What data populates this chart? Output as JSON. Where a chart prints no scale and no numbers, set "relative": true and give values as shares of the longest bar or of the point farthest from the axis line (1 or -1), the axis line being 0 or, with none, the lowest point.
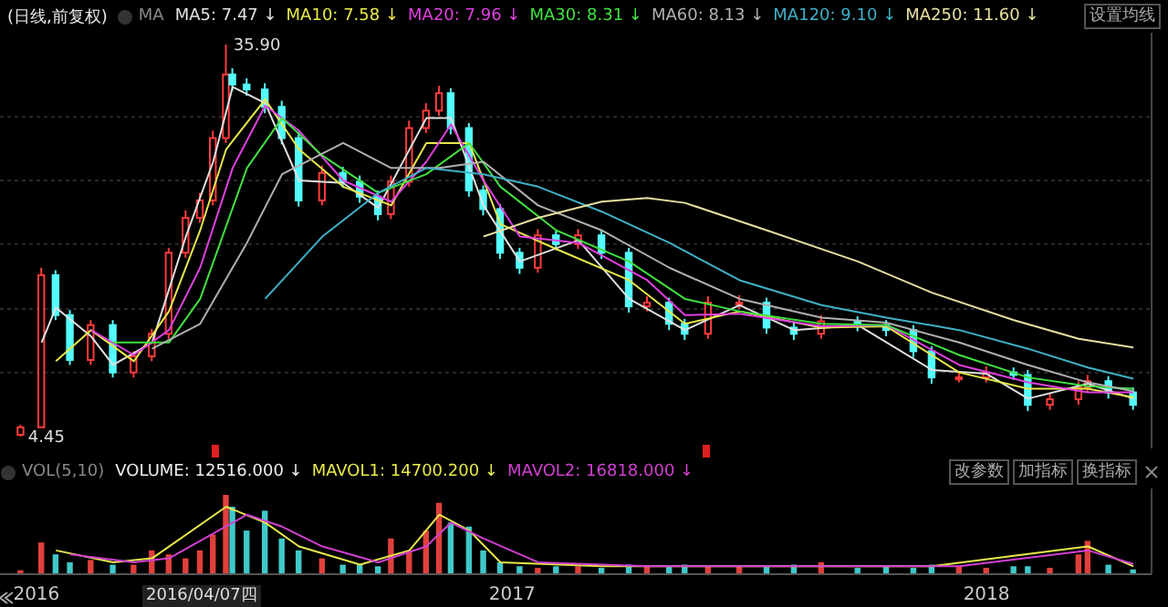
{
  "chart_data": [
    {
      "type": "candlestick",
      "title": "(日线,前复权)",
      "legend_title": "MA",
      "legend": "top",
      "grid": "y",
      "tick_labels": false,
      "x": [
        "2015-12-20",
        "2016-01-05",
        "2016-01-16",
        "2016-01-27",
        "2016-02-12",
        "2016-02-29",
        "2016-03-16",
        "2016-03-30",
        "2016-04-12",
        "2016-04-25",
        "2016-05-06",
        "2016-05-16",
        "2016-05-26",
        "2016-05-31",
        "2016-06-11",
        "2016-06-25",
        "2016-07-08",
        "2016-07-21",
        "2016-08-08",
        "2016-08-24",
        "2016-09-06",
        "2016-09-20",
        "2016-09-30",
        "2016-10-14",
        "2016-10-27",
        "2016-11-06",
        "2016-11-15",
        "2016-11-29",
        "2016-12-10",
        "2016-12-23",
        "2017-01-07",
        "2017-01-21",
        "2017-02-04",
        "2017-02-21",
        "2017-03-11",
        "2017-04-01",
        "2017-04-15",
        "2017-05-02",
        "2017-05-14",
        "2017-06-01",
        "2017-06-25",
        "2017-07-16",
        "2017-08-06",
        "2017-08-27",
        "2017-09-24",
        "2017-10-16",
        "2017-11-06",
        "2017-11-20",
        "2017-12-11",
        "2018-01-01",
        "2018-01-22",
        "2018-02-02",
        "2018-02-19",
        "2018-03-13",
        "2018-03-20",
        "2018-04-05",
        "2018-04-24"
      ],
      "ohlc": [
        [
          4.6,
          5.4,
          4.45,
          5.2
        ],
        [
          5.2,
          18.0,
          5.2,
          17.4
        ],
        [
          17.4,
          17.8,
          13.8,
          14.2
        ],
        [
          14.2,
          14.6,
          10.2,
          10.6
        ],
        [
          10.6,
          13.8,
          10.2,
          13.4
        ],
        [
          13.4,
          13.8,
          9.2,
          9.6
        ],
        [
          9.6,
          11.3,
          9.2,
          10.9
        ],
        [
          10.9,
          13.1,
          10.5,
          12.7
        ],
        [
          12.7,
          19.6,
          12.3,
          19.2
        ],
        [
          19.2,
          22.6,
          18.8,
          22.0
        ],
        [
          22.0,
          24.0,
          21.6,
          23.4
        ],
        [
          23.4,
          29.0,
          23.0,
          28.4
        ],
        [
          28.4,
          35.9,
          28.0,
          33.5
        ],
        [
          33.5,
          34.0,
          32.2,
          32.7
        ],
        [
          32.7,
          33.2,
          31.8,
          32.3
        ],
        [
          32.3,
          32.8,
          30.4,
          30.9
        ],
        [
          30.9,
          31.4,
          27.9,
          28.4
        ],
        [
          28.4,
          28.9,
          22.9,
          23.4
        ],
        [
          23.4,
          26.2,
          23.0,
          25.6
        ],
        [
          25.6,
          26.1,
          24.4,
          24.9
        ],
        [
          24.9,
          25.4,
          23.2,
          23.7
        ],
        [
          23.7,
          24.2,
          21.8,
          22.3
        ],
        [
          22.3,
          25.4,
          21.9,
          24.9
        ],
        [
          24.9,
          29.8,
          24.5,
          29.2
        ],
        [
          29.2,
          31.2,
          28.8,
          30.6
        ],
        [
          30.6,
          32.6,
          30.2,
          32.0
        ],
        [
          32.0,
          32.4,
          28.7,
          29.2
        ],
        [
          29.2,
          29.6,
          23.7,
          24.2
        ],
        [
          24.2,
          24.6,
          22.2,
          22.7
        ],
        [
          22.7,
          23.1,
          18.7,
          19.2
        ],
        [
          19.2,
          19.6,
          17.5,
          18.0
        ],
        [
          18.0,
          21.1,
          17.6,
          20.6
        ],
        [
          20.6,
          21.0,
          19.4,
          19.9
        ],
        [
          19.9,
          21.1,
          19.5,
          20.6
        ],
        [
          20.6,
          21.0,
          18.7,
          19.2
        ],
        [
          19.2,
          19.6,
          14.4,
          14.9
        ],
        [
          14.9,
          15.7,
          14.5,
          15.2
        ],
        [
          15.2,
          15.6,
          13.0,
          13.5
        ],
        [
          13.5,
          13.9,
          12.2,
          12.7
        ],
        [
          12.7,
          15.7,
          12.3,
          15.2
        ],
        [
          15.2,
          15.8,
          14.7,
          15.2
        ],
        [
          15.2,
          15.6,
          12.7,
          13.2
        ],
        [
          13.2,
          13.6,
          12.2,
          12.7
        ],
        [
          12.7,
          14.2,
          12.3,
          13.7
        ],
        [
          13.7,
          14.1,
          12.9,
          13.4
        ],
        [
          13.4,
          13.8,
          12.5,
          13.0
        ],
        [
          13.0,
          13.4,
          10.8,
          11.3
        ],
        [
          11.3,
          11.7,
          8.7,
          9.2
        ],
        [
          9.2,
          9.7,
          8.8,
          9.2
        ],
        [
          9.2,
          10.1,
          8.8,
          9.6
        ],
        [
          9.6,
          10.0,
          9.0,
          9.4
        ],
        [
          9.4,
          9.8,
          6.5,
          7.0
        ],
        [
          7.0,
          7.9,
          6.6,
          7.45
        ],
        [
          7.45,
          8.9,
          7.0,
          8.4
        ],
        [
          8.4,
          9.4,
          8.0,
          8.9
        ],
        [
          8.9,
          9.3,
          7.5,
          8.0
        ],
        [
          8.0,
          8.4,
          6.6,
          7.0
        ]
      ],
      "series": [
        {
          "name": "MA5: 7.47 ↓",
          "type": "line",
          "color": "#e0e0e0",
          "x": [
            "2016-01-05",
            "2016-01-16",
            "2016-02-12",
            "2016-02-29",
            "2016-03-30",
            "2016-04-25",
            "2016-05-16",
            "2016-05-31",
            "2016-06-25",
            "2016-07-21",
            "2016-08-24",
            "2016-09-20",
            "2016-10-27",
            "2016-11-15",
            "2016-12-10",
            "2017-01-07",
            "2017-02-21",
            "2017-04-01",
            "2017-05-14",
            "2017-06-25",
            "2017-08-06",
            "2017-09-24",
            "2017-11-20",
            "2018-01-01",
            "2018-02-02",
            "2018-03-20",
            "2018-04-24"
          ],
          "values": [
            12,
            14.8,
            12.5,
            10.2,
            12,
            20.5,
            26.5,
            32.5,
            31.2,
            25,
            24.8,
            22.8,
            30,
            30,
            23,
            18.5,
            20.2,
            15.5,
            13,
            15,
            13,
            13.4,
            9.8,
            9.5,
            7.5,
            8.7,
            7.5
          ]
        },
        {
          "name": "MA10: 7.58 ↓",
          "type": "line",
          "color": "#e8e84a",
          "x": [
            "2016-01-16",
            "2016-02-12",
            "2016-03-16",
            "2016-04-12",
            "2016-05-06",
            "2016-05-26",
            "2016-06-25",
            "2016-07-21",
            "2016-08-24",
            "2016-09-30",
            "2016-10-27",
            "2016-11-29",
            "2016-12-23",
            "2017-02-04",
            "2017-04-01",
            "2017-05-14",
            "2017-06-25",
            "2017-08-27",
            "2017-10-16",
            "2017-12-11",
            "2018-02-02",
            "2018-03-20",
            "2018-04-24"
          ],
          "values": [
            10.5,
            13,
            10.5,
            14.5,
            21,
            27.5,
            31.5,
            27.5,
            24.5,
            23,
            28,
            28,
            21.5,
            19.5,
            17,
            13.5,
            14.5,
            13.2,
            13.3,
            9.6,
            8.3,
            8.3,
            7.6
          ]
        },
        {
          "name": "MA20: 7.96 ↓",
          "type": "line",
          "color": "#e040e0",
          "x": [
            "2016-02-12",
            "2016-03-16",
            "2016-04-12",
            "2016-05-06",
            "2016-05-31",
            "2016-06-25",
            "2016-07-21",
            "2016-08-24",
            "2016-09-30",
            "2016-10-27",
            "2016-11-15",
            "2016-12-10",
            "2017-01-07",
            "2017-02-21",
            "2017-04-15",
            "2017-05-14",
            "2017-06-25",
            "2017-08-27",
            "2017-10-16",
            "2017-12-11",
            "2018-02-02",
            "2018-03-20",
            "2018-04-24"
          ],
          "values": [
            13,
            11,
            13,
            18,
            26,
            31,
            29,
            25,
            23.3,
            26.5,
            29.5,
            25,
            20.5,
            20,
            17,
            14.2,
            14.3,
            13.3,
            13.4,
            10.2,
            8.8,
            8.0,
            8.0
          ]
        },
        {
          "name": "MA30: 8.31 ↓",
          "type": "line",
          "color": "#40e040",
          "x": [
            "2016-02-29",
            "2016-04-12",
            "2016-05-06",
            "2016-06-11",
            "2016-07-08",
            "2016-08-08",
            "2016-09-20",
            "2016-10-27",
            "2016-11-29",
            "2016-12-23",
            "2017-02-04",
            "2017-04-01",
            "2017-05-14",
            "2017-06-25",
            "2017-08-27",
            "2017-10-16",
            "2017-12-11",
            "2018-02-02",
            "2018-03-20",
            "2018-04-24"
          ],
          "values": [
            12,
            12,
            15.5,
            26,
            30,
            27,
            24,
            25.5,
            28,
            24.5,
            21,
            18.5,
            15.5,
            14.5,
            13.5,
            13.4,
            11,
            9.2,
            8.5,
            8.3
          ]
        },
        {
          "name": "MA60: 8.13 ↓",
          "type": "line",
          "color": "#b0b0b0",
          "x": [
            "2016-03-30",
            "2016-05-06",
            "2016-06-11",
            "2016-07-08",
            "2016-08-24",
            "2016-09-30",
            "2016-11-06",
            "2016-12-10",
            "2017-01-21",
            "2017-03-11",
            "2017-05-02",
            "2017-06-25",
            "2017-08-27",
            "2017-10-16",
            "2017-12-11",
            "2018-02-02",
            "2018-03-20",
            "2018-04-24"
          ],
          "values": [
            11.5,
            13.5,
            20,
            25.5,
            28,
            26,
            26,
            26.5,
            23,
            21,
            18,
            15.5,
            14,
            13.6,
            12,
            10.2,
            8.8,
            8.1
          ]
        },
        {
          "name": "MA120: 9.10 ↓",
          "type": "line",
          "color": "#40b0c8",
          "x": [
            "2016-06-25",
            "2016-08-08",
            "2016-09-20",
            "2016-10-27",
            "2016-12-10",
            "2017-01-21",
            "2017-03-11",
            "2017-05-02",
            "2017-06-25",
            "2017-08-27",
            "2017-10-16",
            "2017-12-11",
            "2018-02-02",
            "2018-03-20",
            "2018-04-24"
          ],
          "values": [
            15.5,
            20.5,
            24,
            26,
            25.5,
            24.5,
            22.5,
            20,
            17,
            15,
            14,
            13,
            11.5,
            10,
            9.1
          ]
        },
        {
          "name": "MA250: 11.60 ↓",
          "type": "line",
          "color": "#e8e0a0",
          "x": [
            "2016-12-10",
            "2017-01-21",
            "2017-03-11",
            "2017-04-15",
            "2017-05-14",
            "2017-07-16",
            "2017-09-24",
            "2017-11-20",
            "2018-01-22",
            "2018-03-13",
            "2018-04-24"
          ],
          "values": [
            20.5,
            22,
            23.3,
            23.6,
            23.2,
            21,
            18.5,
            16,
            13.8,
            12.3,
            11.6
          ]
        }
      ],
      "xlim": [
        "2015-12-04",
        "2018-05-08"
      ],
      "yticks": [
        {
          "value": 9.6,
          "label": null
        },
        {
          "value": 14.7,
          "label": null
        },
        {
          "value": 19.9,
          "label": null
        },
        {
          "value": 25.0,
          "label": null
        },
        {
          "value": 30.1,
          "label": null
        }
      ],
      "annotations": [
        {
          "text": "35.90",
          "x": "2016-05-26",
          "y": 35.9
        },
        {
          "text": "4.45",
          "x": "2015-12-20",
          "y": 4.45
        },
        "设置均线"
      ]
    },
    {
      "type": "bar",
      "relative": true,
      "legend_title": "VOL(5,10)",
      "legend": "top left",
      "tick_labels": "x",
      "x": [
        "2015-12-20",
        "2016-01-05",
        "2016-01-16",
        "2016-01-27",
        "2016-02-12",
        "2016-02-29",
        "2016-03-16",
        "2016-03-30",
        "2016-04-12",
        "2016-04-25",
        "2016-05-06",
        "2016-05-16",
        "2016-05-26",
        "2016-05-31",
        "2016-06-11",
        "2016-06-25",
        "2016-07-08",
        "2016-07-21",
        "2016-08-08",
        "2016-08-24",
        "2016-09-06",
        "2016-09-20",
        "2016-09-30",
        "2016-10-14",
        "2016-10-27",
        "2016-11-06",
        "2016-11-15",
        "2016-11-29",
        "2016-12-10",
        "2016-12-23",
        "2017-01-07",
        "2017-01-21",
        "2017-02-04",
        "2017-02-21",
        "2017-03-11",
        "2017-04-01",
        "2017-04-15",
        "2017-05-02",
        "2017-05-14",
        "2017-06-01",
        "2017-06-25",
        "2017-07-16",
        "2017-08-06",
        "2017-08-27",
        "2017-09-24",
        "2017-10-16",
        "2017-11-06",
        "2017-11-20",
        "2017-12-11",
        "2018-01-01",
        "2018-01-22",
        "2018-02-02",
        "2018-02-19",
        "2018-03-13",
        "2018-03-20",
        "2018-04-05",
        "2018-04-24"
      ],
      "series": [
        {
          "name": "VOLUME: 12516.000 ↓",
          "values": [
            0.05,
            0.4,
            0.25,
            0.15,
            0.18,
            0.12,
            0.12,
            0.3,
            0.25,
            0.2,
            0.3,
            0.5,
            1,
            0.85,
            0.55,
            0.8,
            0.45,
            0.3,
            0.2,
            0.12,
            0.12,
            0.1,
            0.45,
            0.3,
            0.55,
            0.9,
            0.65,
            0.6,
            0.3,
            0.15,
            0.1,
            0.08,
            0.1,
            0.1,
            0.08,
            0.12,
            0.1,
            0.1,
            0.12,
            0.1,
            0.1,
            0.1,
            0.12,
            0.15,
            0.08,
            0.1,
            0.08,
            0.12,
            0.1,
            0.08,
            0.1,
            0.1,
            0.08,
            0.25,
            0.42,
            0.12,
            0.06
          ],
          "colors": [
            "#e0403c",
            "#e0403c",
            "#40c8c8",
            "#40c8c8",
            "#e0403c",
            "#40c8c8",
            "#e0403c",
            "#e0403c",
            "#e0403c",
            "#e0403c",
            "#e0403c",
            "#e0403c",
            "#e0403c",
            "#40c8c8",
            "#40c8c8",
            "#40c8c8",
            "#40c8c8",
            "#40c8c8",
            "#e0403c",
            "#40c8c8",
            "#40c8c8",
            "#40c8c8",
            "#e0403c",
            "#e0403c",
            "#e0403c",
            "#e0403c",
            "#40c8c8",
            "#40c8c8",
            "#40c8c8",
            "#40c8c8",
            "#40c8c8",
            "#e0403c",
            "#40c8c8",
            "#e0403c",
            "#40c8c8",
            "#40c8c8",
            "#e0403c",
            "#40c8c8",
            "#40c8c8",
            "#e0403c",
            "#e0403c",
            "#40c8c8",
            "#40c8c8",
            "#e0403c",
            "#40c8c8",
            "#40c8c8",
            "#40c8c8",
            "#40c8c8",
            "#e0403c",
            "#e0403c",
            "#40c8c8",
            "#40c8c8",
            "#e0403c",
            "#e0403c",
            "#e0403c",
            "#40c8c8",
            "#40c8c8"
          ]
        },
        {
          "name": "MAVOL1: 14700.200 ↓",
          "type": "line",
          "color": "#e8e84a",
          "x": [
            "2016-01-16",
            "2016-02-29",
            "2016-03-30",
            "2016-05-26",
            "2016-06-25",
            "2016-07-21",
            "2016-09-06",
            "2016-10-14",
            "2016-11-06",
            "2016-11-29",
            "2016-12-23",
            "2017-03-11",
            "2017-07-16",
            "2017-11-20",
            "2018-03-20",
            "2018-04-24"
          ],
          "values": [
            0.3,
            0.15,
            0.2,
            0.85,
            0.65,
            0.35,
            0.12,
            0.3,
            0.75,
            0.55,
            0.15,
            0.1,
            0.1,
            0.1,
            0.35,
            0.1
          ]
        },
        {
          "name": "MAVOL2: 16818.000 ↓",
          "type": "line",
          "color": "#d040d0",
          "x": [
            "2016-01-27",
            "2016-03-16",
            "2016-04-12",
            "2016-06-11",
            "2016-07-08",
            "2016-08-08",
            "2016-09-20",
            "2016-10-27",
            "2016-11-15",
            "2016-12-10",
            "2017-01-21",
            "2017-04-15",
            "2017-08-27",
            "2017-12-11",
            "2018-03-20",
            "2018-04-24"
          ],
          "values": [
            0.25,
            0.15,
            0.2,
            0.75,
            0.6,
            0.35,
            0.15,
            0.35,
            0.65,
            0.45,
            0.15,
            0.1,
            0.1,
            0.1,
            0.3,
            0.13
          ]
        }
      ],
      "xlim": [
        "2015-12-04",
        "2018-05-08"
      ],
      "xticks": [
        {
          "value": "2016-01-01",
          "label": "2016"
        },
        {
          "value": "2017-01-01",
          "label": "2017"
        },
        {
          "value": "2018-01-01",
          "label": "2018"
        }
      ],
      "annotations": [
        "2016/04/07四",
        "改参数",
        "加指标",
        "换指标"
      ]
    }
  ]
}
